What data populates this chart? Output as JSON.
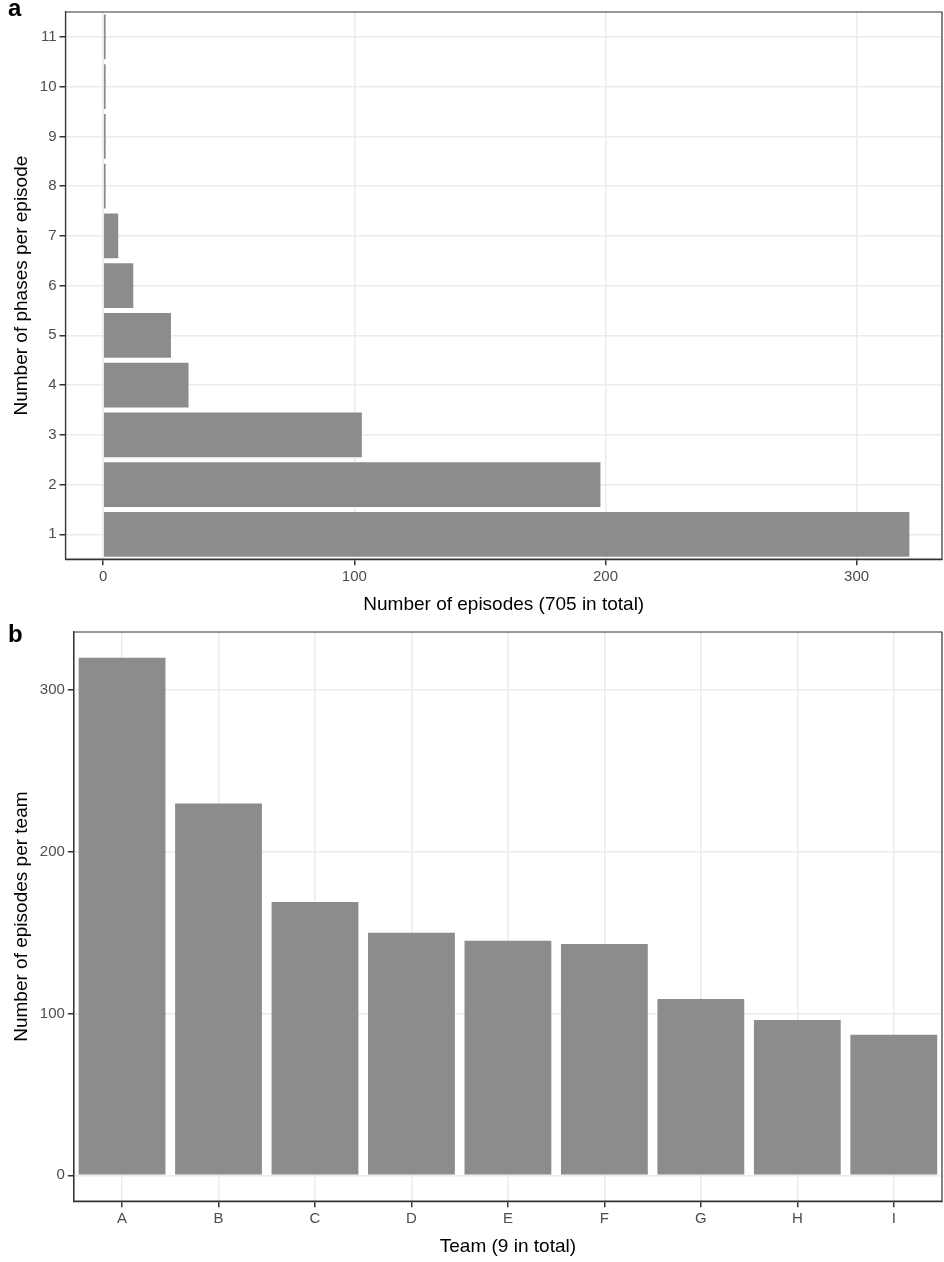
{
  "chart_data": [
    {
      "type": "bar",
      "title": "a",
      "orientation": "horizontal",
      "xlabel": "Number of episodes (705 in total)",
      "ylabel": "Number of phases per episode",
      "categories": [
        "11",
        "10",
        "9",
        "8",
        "7",
        "6",
        "5",
        "4",
        "3",
        "2",
        "1"
      ],
      "values": [
        1,
        1,
        1,
        1,
        6,
        12,
        27,
        34,
        103,
        198,
        321
      ],
      "color": "#8c8c8c",
      "xlim": [
        -15,
        334
      ],
      "xticks": [
        0,
        100,
        200,
        300
      ],
      "grid": true
    },
    {
      "type": "bar",
      "title": "b",
      "xlabel": "Team (9 in total)",
      "ylabel": "Number of episodes per team",
      "categories": [
        "A",
        "B",
        "C",
        "D",
        "E",
        "F",
        "G",
        "H",
        "I"
      ],
      "values": [
        320,
        230,
        169,
        150,
        145,
        143,
        109,
        96,
        87
      ],
      "color": "#8c8c8c",
      "ylim": [
        -16,
        336
      ],
      "yticks": [
        0,
        100,
        200,
        300
      ],
      "grid": true
    }
  ]
}
